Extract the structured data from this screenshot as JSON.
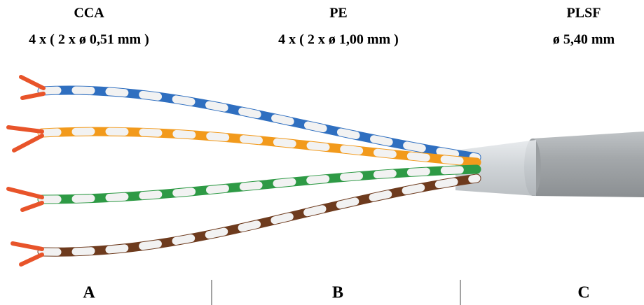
{
  "columns": [
    {
      "name": "CCA",
      "spec": "4 x ( 2 x ø 0,51 mm )",
      "label": "A"
    },
    {
      "name": "PE",
      "spec": "4 x ( 2 x ø 1,00 mm )",
      "label": "B"
    },
    {
      "name": "PLSF",
      "spec": "ø 5,40 mm",
      "label": "C"
    }
  ]
}
